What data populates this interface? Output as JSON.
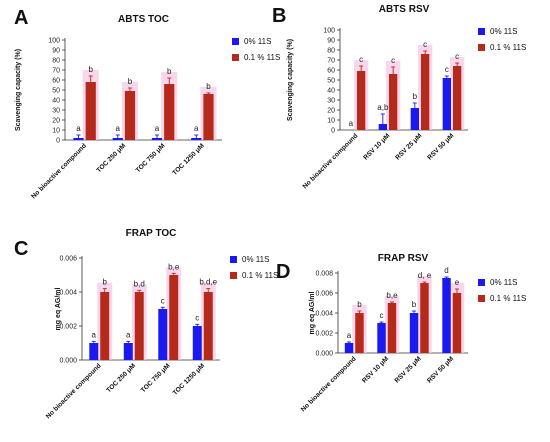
{
  "colors": {
    "blue": "#1a1af0",
    "red": "#b52a1a",
    "highlight": "#f5c6e6"
  },
  "chart_data": [
    {
      "panel": "A",
      "type": "bar",
      "title": "ABTS TOC",
      "ylabel": "Scavenging capacity (%)",
      "xlabel": "",
      "ylim": [
        0,
        100
      ],
      "ytick_step": 10,
      "categories": [
        "No bioactive compound",
        "TOC 250 μM",
        "TOC 750 μM",
        "TOC 1250 μM"
      ],
      "legend": [
        "0% 11S",
        "0.1 % 11S"
      ],
      "series": [
        {
          "name": "0% 11S",
          "values": [
            2,
            2,
            2,
            2
          ],
          "errors": [
            3,
            3,
            3,
            3
          ],
          "sig": [
            "a",
            "a",
            "a",
            "a"
          ]
        },
        {
          "name": "0.1 % 11S",
          "values": [
            58,
            49,
            56,
            46
          ],
          "errors": [
            6,
            3,
            6,
            1
          ],
          "sig": [
            "b",
            "b",
            "b",
            "b"
          ]
        }
      ]
    },
    {
      "panel": "B",
      "type": "bar",
      "title": "ABTS RSV",
      "ylabel": "Scavenging capacity (%)",
      "xlabel": "",
      "ylim": [
        0,
        100
      ],
      "ytick_step": 10,
      "categories": [
        "No bioactive compound",
        "RSV 10 μM",
        "RSV 25 μM",
        "RSV 50 μM"
      ],
      "legend": [
        "0% 11S",
        "0.1 % 11S"
      ],
      "series": [
        {
          "name": "0% 11S",
          "values": [
            0,
            6,
            22,
            52
          ],
          "errors": [
            0,
            10,
            5,
            2
          ],
          "sig": [
            "a",
            "a,b",
            "b",
            "c"
          ]
        },
        {
          "name": "0.1 % 11S",
          "values": [
            59,
            56,
            76,
            64
          ],
          "errors": [
            5,
            7,
            3,
            3
          ],
          "sig": [
            "c",
            "c",
            "c",
            "c"
          ]
        }
      ]
    },
    {
      "panel": "C",
      "type": "bar",
      "title": "FRAP TOC",
      "ylabel": "mg eq AG/ml",
      "xlabel": "",
      "ylim": [
        0,
        0.006
      ],
      "ytick_step": 0.002,
      "categories": [
        "No bioactive compound",
        "TOC 250 μM",
        "TOC 750 μM",
        "TOC 1250 μM"
      ],
      "legend": [
        "0% 11S",
        "0.1 % 11S"
      ],
      "series": [
        {
          "name": "0% 11S",
          "values": [
            0.001,
            0.001,
            0.003,
            0.002
          ],
          "errors": [
            0.0001,
            0.0001,
            0.0001,
            0.0001
          ],
          "sig": [
            "a",
            "a",
            "c",
            "c"
          ]
        },
        {
          "name": "0.1 % 11S",
          "values": [
            0.004,
            0.004,
            0.005,
            0.004
          ],
          "errors": [
            0.0002,
            0.0001,
            0.0001,
            0.0002
          ],
          "sig": [
            "b",
            "b,d",
            "b,e",
            "b,d,e"
          ]
        }
      ]
    },
    {
      "panel": "D",
      "type": "bar",
      "title": "FRAP RSV",
      "ylabel": "mg eq AG/ml",
      "xlabel": "",
      "ylim": [
        0,
        0.008
      ],
      "ytick_step": 0.002,
      "categories": [
        "No bioactive compound",
        "RSV 10 μM",
        "RSV 25 μM",
        "RSV 50 μM"
      ],
      "legend": [
        "0% 11S",
        "0.1 % 11S"
      ],
      "series": [
        {
          "name": "0% 11S",
          "values": [
            0.001,
            0.003,
            0.004,
            0.0075
          ],
          "errors": [
            0.0001,
            0.0001,
            0.0002,
            0.0001
          ],
          "sig": [
            "a",
            "c",
            "b",
            "d"
          ]
        },
        {
          "name": "0.1 % 11S",
          "values": [
            0.004,
            0.005,
            0.007,
            0.006
          ],
          "errors": [
            0.0002,
            0.0001,
            0.0001,
            0.0004
          ],
          "sig": [
            "b",
            "b,e",
            "d, e",
            "e"
          ]
        }
      ]
    }
  ]
}
